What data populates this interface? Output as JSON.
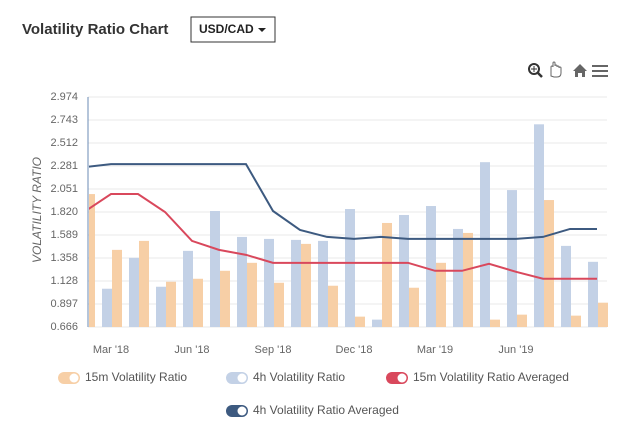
{
  "selector": "USD/CAD",
  "chart_data": {
    "type": "bar",
    "title": "Volatility Ratio Chart",
    "y_label": "VOLATILITY RATIO",
    "categories": [
      null,
      "Mar '18",
      null,
      null,
      "Jun '18",
      null,
      null,
      "Sep '18",
      null,
      null,
      "Dec '18",
      null,
      null,
      "Mar '19",
      null,
      null,
      "Jun '19",
      null,
      null,
      null
    ],
    "series": [
      {
        "name": "15m Volatility Ratio",
        "type": "bar",
        "color": "#f7cfa6",
        "values": [
          2.0,
          1.44,
          1.53,
          1.12,
          1.15,
          1.23,
          1.31,
          1.11,
          1.5,
          1.08,
          0.77,
          1.71,
          1.06,
          1.31,
          1.61,
          0.74,
          0.79,
          1.94,
          0.78,
          0.91
        ]
      },
      {
        "name": "4h Volatility Ratio",
        "type": "bar",
        "color": "#c3d1e6",
        "values": [
          null,
          1.05,
          1.36,
          1.07,
          1.43,
          1.83,
          1.57,
          1.55,
          1.54,
          1.53,
          1.85,
          0.74,
          1.79,
          1.88,
          1.65,
          2.32,
          2.04,
          2.7,
          1.48,
          1.32
        ]
      },
      {
        "name": "15m Volatility Ratio Averaged",
        "type": "line",
        "color": "#d9485c",
        "values": [
          1.82,
          2.0,
          2.0,
          1.82,
          1.53,
          1.44,
          1.39,
          1.31,
          1.31,
          1.31,
          1.31,
          1.31,
          1.31,
          1.23,
          1.23,
          1.3,
          1.22,
          1.15,
          1.15,
          1.15
        ]
      },
      {
        "name": "4h Volatility Ratio Averaged",
        "type": "line",
        "color": "#3d5a80",
        "values": [
          2.27,
          2.3,
          2.3,
          2.3,
          2.3,
          2.3,
          2.3,
          1.83,
          1.64,
          1.57,
          1.55,
          1.57,
          1.55,
          1.55,
          1.55,
          1.55,
          1.55,
          1.57,
          1.65,
          1.65
        ]
      }
    ],
    "ylim": [
      0.666,
      2.974
    ],
    "yticks": [
      0.666,
      0.897,
      1.128,
      1.358,
      1.589,
      {
        "value": 1.82,
        "label": "1.820"
      },
      2.051,
      2.281,
      2.512,
      2.743,
      2.974
    ],
    "grid": true
  }
}
